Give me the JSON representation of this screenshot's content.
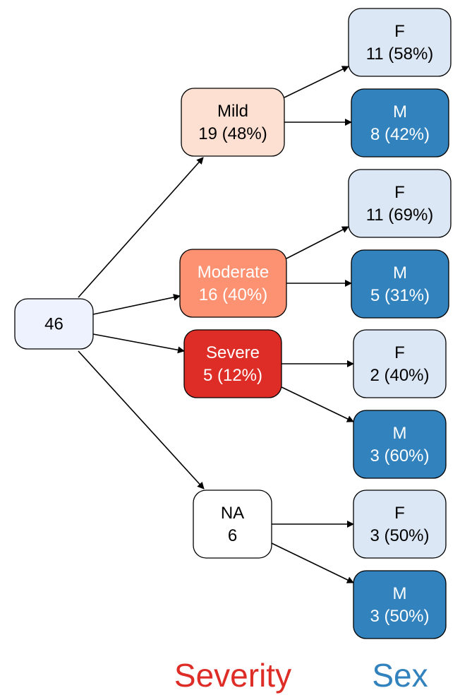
{
  "root": {
    "label": "46",
    "fill": "#eef2ff"
  },
  "severity": [
    {
      "name": "Mild",
      "count": "19 (48%)",
      "fill": "#fde0d2",
      "text_color": "#000000"
    },
    {
      "name": "Moderate",
      "count": "16 (40%)",
      "fill": "#fc9272",
      "text_color": "#ffffff"
    },
    {
      "name": "Severe",
      "count": "5 (12%)",
      "fill": "#de2d26",
      "text_color": "#ffffff"
    },
    {
      "name": "NA",
      "count": "6",
      "fill": "#ffffff",
      "text_color": "#000000"
    }
  ],
  "sex": [
    {
      "parent": 0,
      "name": "F",
      "count": "11 (58%)",
      "fill": "#dbe7f4",
      "text_color": "#000000"
    },
    {
      "parent": 0,
      "name": "M",
      "count": "8 (42%)",
      "fill": "#3182bd",
      "text_color": "#ffffff"
    },
    {
      "parent": 1,
      "name": "F",
      "count": "11 (69%)",
      "fill": "#dbe7f4",
      "text_color": "#000000"
    },
    {
      "parent": 1,
      "name": "M",
      "count": "5 (31%)",
      "fill": "#3182bd",
      "text_color": "#ffffff"
    },
    {
      "parent": 2,
      "name": "F",
      "count": "2 (40%)",
      "fill": "#dbe7f4",
      "text_color": "#000000"
    },
    {
      "parent": 2,
      "name": "M",
      "count": "3 (60%)",
      "fill": "#3182bd",
      "text_color": "#ffffff"
    },
    {
      "parent": 3,
      "name": "F",
      "count": "3 (50%)",
      "fill": "#dbe7f4",
      "text_color": "#000000"
    },
    {
      "parent": 3,
      "name": "M",
      "count": "3 (50%)",
      "fill": "#3182bd",
      "text_color": "#ffffff"
    }
  ],
  "level_labels": {
    "severity": {
      "text": "Severity",
      "color": "#de2d26"
    },
    "sex": {
      "text": "Sex",
      "color": "#3182bd"
    }
  }
}
